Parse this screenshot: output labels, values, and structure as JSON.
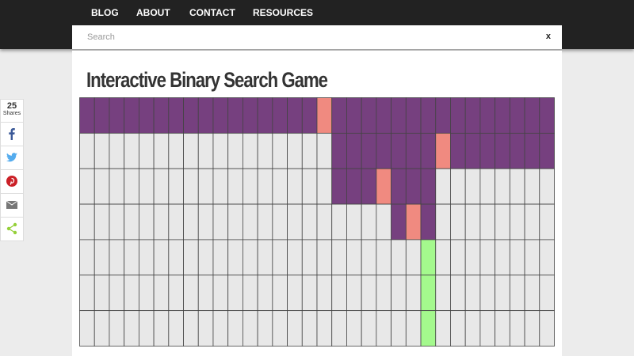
{
  "nav": {
    "items": [
      "BLOG",
      "ABOUT",
      "CONTACT",
      "RESOURCES"
    ]
  },
  "search": {
    "placeholder": "Search",
    "close": "x"
  },
  "article": {
    "title": "Interactive Binary Search Game"
  },
  "share": {
    "count": 25,
    "label": "Shares"
  }
}
